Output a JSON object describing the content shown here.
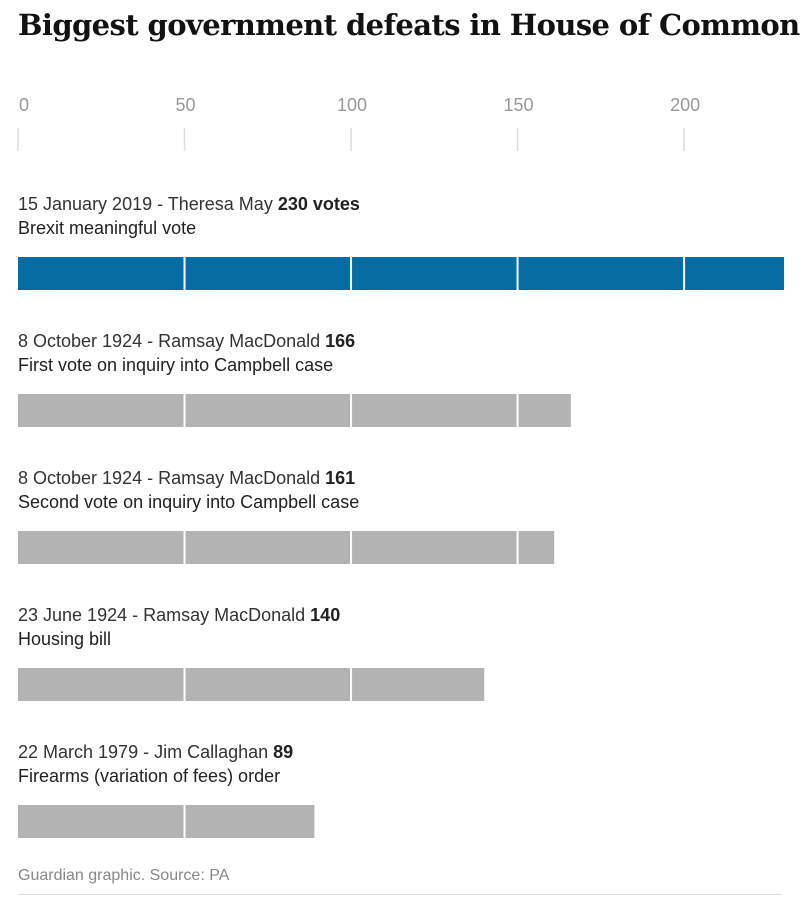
{
  "chart_data": {
    "type": "bar",
    "orientation": "horizontal",
    "title": "Biggest government defeats in House of Commons",
    "xlim": [
      0,
      230
    ],
    "xticks": [
      0,
      50,
      100,
      150,
      200
    ],
    "gridlines": true,
    "unit": "votes",
    "categories": [
      {
        "date_pm": "15 January 2019 - Theresa May",
        "value": 230,
        "value_label": "230 votes",
        "vote": "Brexit meaningful vote",
        "highlight": true
      },
      {
        "date_pm": "8 October 1924 - Ramsay MacDonald",
        "value": 166,
        "value_label": "166",
        "vote": "First vote on inquiry into Campbell case",
        "highlight": false
      },
      {
        "date_pm": "8 October 1924 - Ramsay MacDonald",
        "value": 161,
        "value_label": "161",
        "vote": "Second vote on inquiry into Campbell case",
        "highlight": false
      },
      {
        "date_pm": "23 June 1924 - Ramsay MacDonald",
        "value": 140,
        "value_label": "140",
        "vote": "Housing bill",
        "highlight": false
      },
      {
        "date_pm": "22 March 1979 - Jim Callaghan",
        "value": 89,
        "value_label": "89",
        "vote": "Firearms (variation of fees) order",
        "highlight": false
      }
    ]
  },
  "colors": {
    "highlight_bar": "#056da1",
    "default_bar": "#b3b3b4",
    "separator": "#ffffff"
  },
  "source": "Guardian graphic. Source: PA"
}
